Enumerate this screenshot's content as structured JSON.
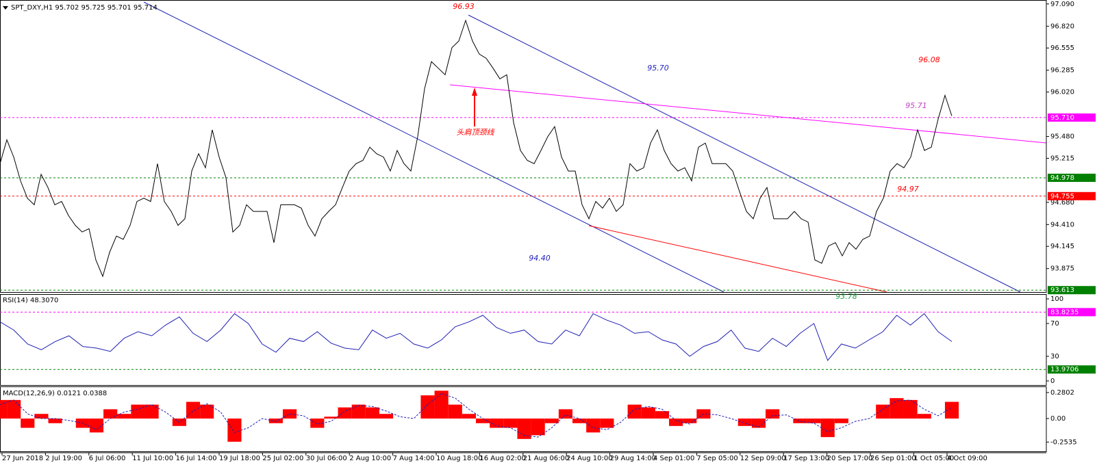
{
  "chart_data": [
    {
      "type": "line",
      "title": "SPT_DXY,H1  95.702 95.725 95.701 95.714",
      "color": "#000000",
      "values": [
        95.15,
        95.44,
        95.23,
        94.94,
        94.73,
        94.65,
        95.02,
        94.86,
        94.65,
        94.69,
        94.52,
        94.4,
        94.32,
        94.36,
        93.98,
        93.78,
        94.07,
        94.27,
        94.23,
        94.4,
        94.69,
        94.73,
        94.69,
        95.15,
        94.69,
        94.57,
        94.4,
        94.48,
        95.06,
        95.27,
        95.1,
        95.56,
        95.23,
        94.98,
        94.32,
        94.4,
        94.65,
        94.57,
        94.57,
        94.57,
        94.19,
        94.65,
        94.65,
        94.65,
        94.61,
        94.4,
        94.27,
        94.48,
        94.57,
        94.65,
        94.86,
        95.06,
        95.15,
        95.19,
        95.35,
        95.27,
        95.23,
        95.06,
        95.31,
        95.15,
        95.06,
        95.48,
        96.06,
        96.39,
        96.31,
        96.23,
        96.56,
        96.64,
        96.89,
        96.64,
        96.48,
        96.43,
        96.31,
        96.18,
        96.23,
        95.65,
        95.31,
        95.19,
        95.15,
        95.31,
        95.48,
        95.6,
        95.23,
        95.06,
        95.06,
        94.65,
        94.48,
        94.69,
        94.61,
        94.73,
        94.57,
        94.65,
        95.15,
        95.06,
        95.1,
        95.4,
        95.56,
        95.31,
        95.15,
        95.06,
        95.1,
        94.94,
        95.35,
        95.4,
        95.15,
        95.15,
        95.15,
        95.06,
        94.81,
        94.57,
        94.48,
        94.73,
        94.86,
        94.48,
        94.48,
        94.48,
        94.57,
        94.48,
        94.44,
        93.98,
        93.94,
        94.15,
        94.19,
        94.03,
        94.19,
        94.11,
        94.23,
        94.27,
        94.57,
        94.73,
        95.06,
        95.15,
        95.1,
        95.23,
        95.56,
        95.31,
        95.35,
        95.69,
        95.98,
        95.73
      ],
      "ylim": [
        93.59,
        97.13
      ],
      "yticks": [
        {
          "value": 97.09,
          "label": "97.090"
        },
        {
          "value": 96.82,
          "label": "96.820"
        },
        96.555,
        96.285,
        {
          "value": 96.02,
          "label": "96.020"
        },
        {
          "value": 95.48,
          "label": "95.480"
        },
        95.215,
        {
          "value": 94.68,
          "label": "94.680"
        },
        {
          "value": 94.41,
          "label": "94.410"
        },
        94.145,
        93.875
      ],
      "levels": [
        {
          "value": 95.71,
          "label": "95.710",
          "color": "#ff00ff"
        },
        {
          "value": 94.978,
          "label": "94.978",
          "color": "#008000"
        },
        {
          "value": 94.755,
          "label": "94.755",
          "color": "#ff0000"
        },
        {
          "value": 93.613,
          "label": "93.613",
          "color": "#008000"
        }
      ],
      "annotations": [
        {
          "text": "96.93",
          "color": "#ff0000"
        },
        {
          "text": "95.70",
          "color": "#2020c0"
        },
        {
          "text": "96.08",
          "color": "#ff0000"
        },
        {
          "text": "95.71",
          "color": "#c040c0"
        },
        {
          "text": "94.97",
          "color": "#ff0000"
        },
        {
          "text": "94.40",
          "color": "#2020c0"
        },
        {
          "text": "93.78",
          "color": "#20a040"
        },
        {
          "text": "头肩顶颈线",
          "color": "#ff0000"
        }
      ],
      "time_axis": [
        "27 Jun 2018",
        "2 Jul 19:00",
        "6 Jul 06:00",
        "11 Jul 10:00",
        "16 Jul 14:00",
        "19 Jul 18:00",
        "25 Jul 02:00",
        "30 Jul 06:00",
        "2 Aug 10:00",
        "7 Aug 14:00",
        "10 Aug 18:00",
        "16 Aug 02:00",
        "21 Aug 06:00",
        "24 Aug 10:00",
        "29 Aug 14:00",
        "4 Sep 01:00",
        "7 Sep 05:00",
        "12 Sep 09:00",
        "17 Sep 13:00",
        "20 Sep 17:00",
        "26 Sep 01:00",
        "1 Oct 05:00",
        "4 Oct 09:00"
      ]
    },
    {
      "type": "line",
      "title": "RSI(14) 48.3070",
      "color": "#1e1eb4",
      "values": [
        72,
        62,
        45,
        38,
        48,
        55,
        42,
        40,
        36,
        52,
        60,
        55,
        68,
        78,
        58,
        48,
        62,
        82,
        70,
        45,
        35,
        52,
        48,
        60,
        46,
        40,
        38,
        62,
        52,
        58,
        45,
        40,
        50,
        66,
        72,
        80,
        65,
        58,
        62,
        48,
        45,
        62,
        55,
        82,
        74,
        68,
        58,
        60,
        50,
        45,
        30,
        42,
        48,
        62,
        40,
        36,
        52,
        42,
        58,
        70,
        25,
        45,
        40,
        50,
        60,
        80,
        68,
        82,
        60,
        48
      ],
      "ylim": [
        -5,
        105
      ],
      "yticks": [
        0,
        30,
        70,
        100
      ],
      "levels": [
        {
          "value": 83.8235,
          "label": "83.8235",
          "color": "#ff00ff"
        },
        {
          "value": 13.9706,
          "label": "13.9706",
          "color": "#008000"
        }
      ]
    },
    {
      "type": "bar",
      "title": "MACD(12,26,9) 0.0121 0.0388",
      "color": "#ff0000",
      "signal_color": "#1e1eb4",
      "values": [
        0.2,
        0.2,
        -0.1,
        0.05,
        -0.05,
        0.0,
        -0.1,
        -0.15,
        0.1,
        0.05,
        0.15,
        0.15,
        0.0,
        -0.08,
        0.18,
        0.15,
        0.0,
        -0.25,
        0.0,
        0.0,
        -0.05,
        0.1,
        0.0,
        -0.1,
        0.02,
        0.12,
        0.15,
        0.12,
        0.05,
        0.0,
        0.0,
        0.25,
        0.3,
        0.15,
        0.05,
        -0.05,
        -0.1,
        -0.1,
        -0.22,
        -0.18,
        -0.05,
        0.1,
        -0.05,
        -0.15,
        -0.1,
        0.0,
        0.15,
        0.12,
        0.08,
        -0.08,
        -0.05,
        0.1,
        0.0,
        0.0,
        -0.08,
        -0.1,
        0.1,
        0.0,
        -0.05,
        -0.05,
        -0.2,
        -0.05,
        0.0,
        0.0,
        0.15,
        0.22,
        0.2,
        0.05,
        0.0,
        0.18
      ],
      "signal": [
        0.15,
        0.2,
        0.05,
        0.0,
        0.0,
        -0.02,
        -0.05,
        -0.12,
        0.0,
        0.07,
        0.1,
        0.15,
        0.07,
        -0.04,
        0.08,
        0.16,
        0.07,
        -0.15,
        -0.1,
        0.0,
        -0.03,
        0.05,
        0.03,
        -0.06,
        -0.03,
        0.08,
        0.14,
        0.13,
        0.08,
        0.02,
        0.0,
        0.15,
        0.27,
        0.22,
        0.1,
        0.0,
        -0.08,
        -0.1,
        -0.18,
        -0.2,
        -0.1,
        0.04,
        0.0,
        -0.1,
        -0.12,
        -0.04,
        0.1,
        0.13,
        0.1,
        -0.02,
        -0.06,
        0.05,
        0.04,
        0.0,
        -0.05,
        -0.09,
        0.03,
        0.04,
        -0.03,
        -0.05,
        -0.14,
        -0.1,
        -0.03,
        0.0,
        0.1,
        0.19,
        0.2,
        0.1,
        0.03,
        0.12
      ],
      "ylim": [
        -0.354,
        0.339
      ],
      "yticks": [
        0.2802,
        {
          "value": 0,
          "label": "0.00"
        },
        -0.2535
      ]
    }
  ]
}
